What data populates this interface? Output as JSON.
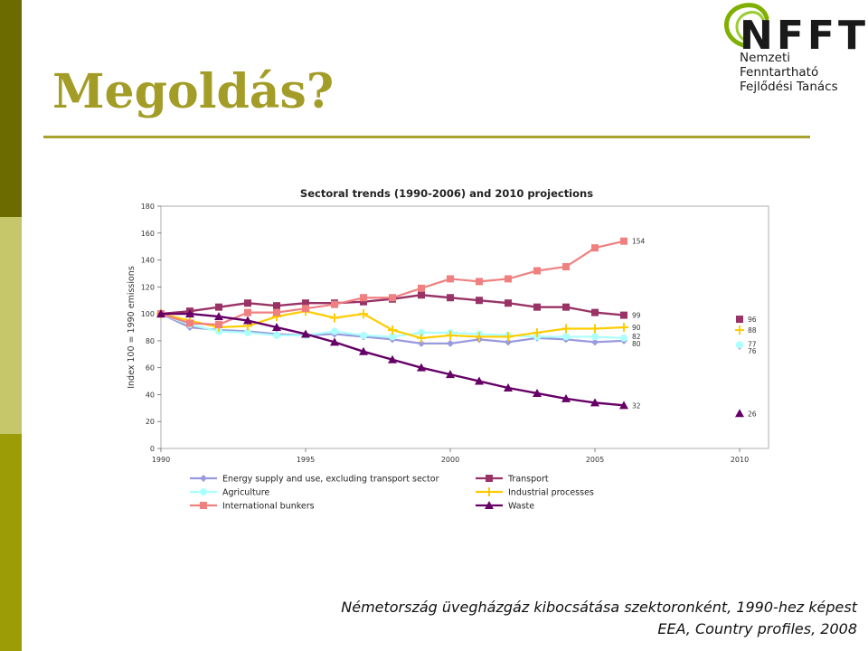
{
  "slide": {
    "title": "Megoldás?",
    "caption_line1": "Németország üvegházgáz kibocsátása szektoronként, 1990-hez képest",
    "caption_line2": "EEA, Country profiles, 2008"
  },
  "logo": {
    "name": "NFFT",
    "sub_line1": "Nemzeti Fenntartható",
    "sub_line2": "Fejlődési Tanács",
    "colors": {
      "green": "#7fb000",
      "dark": "#1a1a1a"
    }
  },
  "chart_data": {
    "type": "line",
    "title": "Sectoral trends (1990-2006) and 2010 projections",
    "ylabel": "Index 100 = 1990 emissions",
    "xlabel": "",
    "xlim": [
      1990,
      2011
    ],
    "ylim": [
      0,
      180
    ],
    "x_ticks": [
      1990,
      1995,
      2000,
      2005,
      2010
    ],
    "y_ticks": [
      0,
      20,
      40,
      60,
      80,
      100,
      120,
      140,
      160,
      180
    ],
    "legend_position": "bottom",
    "x": [
      1990,
      1991,
      1992,
      1993,
      1994,
      1995,
      1996,
      1997,
      1998,
      1999,
      2000,
      2001,
      2002,
      2003,
      2004,
      2005,
      2006
    ],
    "series": [
      {
        "name": "Energy supply and use, excluding transport sector",
        "color": "#9999dd",
        "marker": "diamond",
        "values": [
          100,
          90,
          88,
          87,
          85,
          84,
          85,
          83,
          81,
          78,
          78,
          81,
          79,
          82,
          81,
          79,
          80
        ],
        "end_label": "80",
        "projection": {
          "x": 2010,
          "y": 76,
          "label": "76"
        }
      },
      {
        "name": "Transport",
        "color": "#993366",
        "marker": "square",
        "values": [
          100,
          102,
          105,
          108,
          106,
          108,
          108,
          109,
          111,
          114,
          112,
          110,
          108,
          105,
          105,
          101,
          99
        ],
        "end_label": "99",
        "projection": {
          "x": 2010,
          "y": 96,
          "label": "96"
        }
      },
      {
        "name": "Agriculture",
        "color": "#aaffff",
        "marker": "circle",
        "values": [
          100,
          92,
          87,
          86,
          84,
          84,
          87,
          84,
          83,
          86,
          86,
          85,
          84,
          83,
          83,
          83,
          82
        ],
        "end_label": "82",
        "projection": {
          "x": 2010,
          "y": 77,
          "label": "77"
        }
      },
      {
        "name": "Industrial processes",
        "color": "#ffcc00",
        "marker": "plus",
        "values": [
          100,
          95,
          90,
          91,
          98,
          102,
          97,
          100,
          88,
          82,
          84,
          83,
          83,
          86,
          89,
          89,
          90
        ],
        "end_label": "90",
        "projection": {
          "x": 2010,
          "y": 88,
          "label": "88"
        }
      },
      {
        "name": "International bunkers",
        "color": "#f08080",
        "marker": "square",
        "values": [
          100,
          93,
          92,
          101,
          101,
          104,
          107,
          112,
          112,
          119,
          126,
          124,
          126,
          132,
          135,
          149,
          154
        ],
        "end_label": "154",
        "projection": null
      },
      {
        "name": "Waste",
        "color": "#660066",
        "marker": "triangle",
        "values": [
          100,
          100,
          98,
          95,
          90,
          85,
          79,
          72,
          66,
          60,
          55,
          50,
          45,
          41,
          37,
          34,
          32
        ],
        "end_label": "32",
        "projection": {
          "x": 2010,
          "y": 26,
          "label": "26"
        }
      }
    ]
  }
}
